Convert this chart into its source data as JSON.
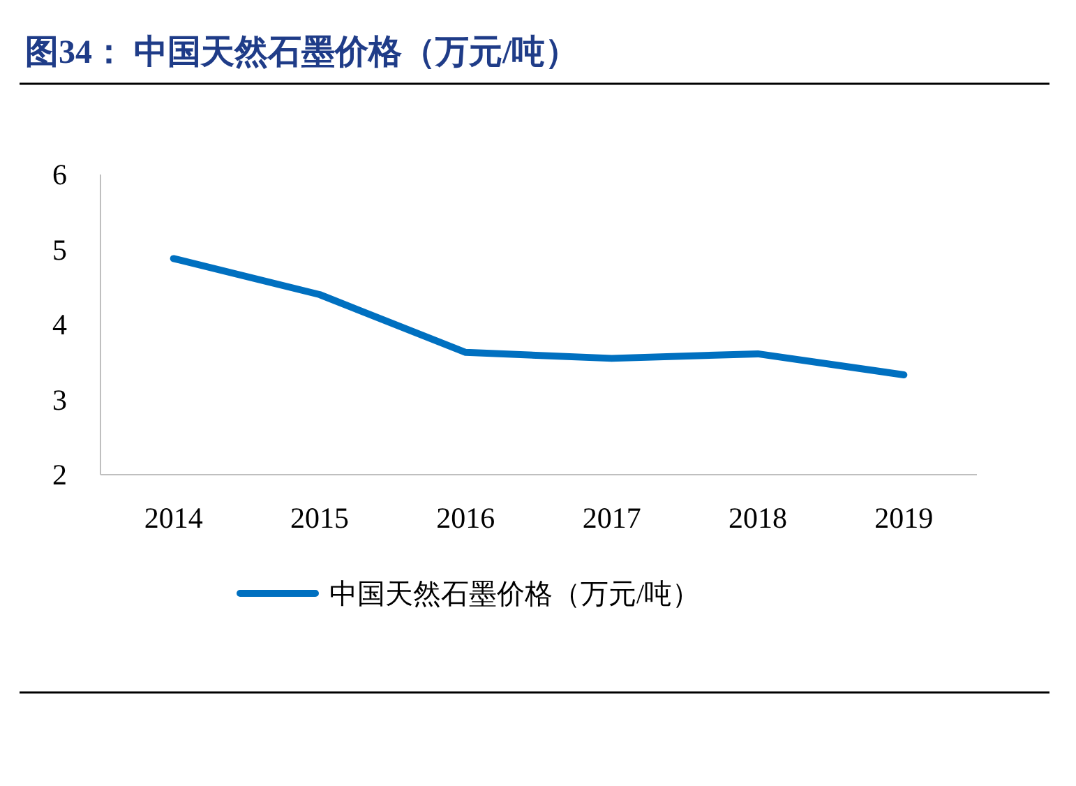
{
  "chart_data": {
    "type": "line",
    "title": "图34：  中国天然石墨价格（万元/吨）",
    "categories": [
      "2014",
      "2015",
      "2016",
      "2017",
      "2018",
      "2019"
    ],
    "series": [
      {
        "name": "中国天然石墨价格（万元/吨）",
        "color": "#0070c0",
        "values": [
          4.88,
          4.4,
          3.63,
          3.55,
          3.61,
          3.33
        ]
      }
    ],
    "ylim": [
      2,
      6
    ],
    "yticks": [
      2,
      3,
      4,
      5,
      6
    ],
    "grid": false,
    "legend": "bottom",
    "marker": "none",
    "line_style": "solid"
  }
}
